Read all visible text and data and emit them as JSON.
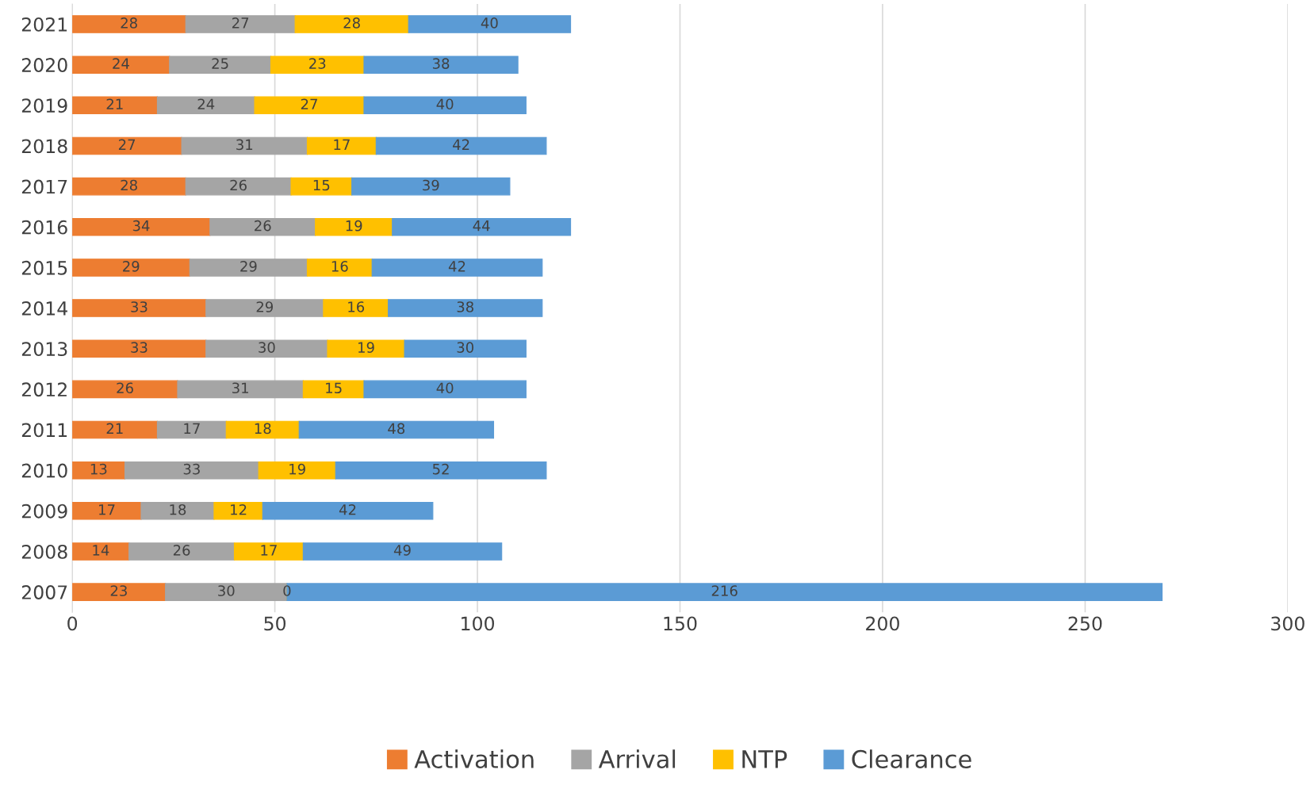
{
  "chart_data": {
    "type": "bar",
    "orientation": "horizontal",
    "stacked": true,
    "data_labels": true,
    "grid": "x",
    "legend": "bottom",
    "categories": [
      "2021",
      "2020",
      "2019",
      "2018",
      "2017",
      "2016",
      "2015",
      "2014",
      "2013",
      "2012",
      "2011",
      "2010",
      "2009",
      "2008",
      "2007"
    ],
    "xlim": [
      0,
      300
    ],
    "xticks": [
      0,
      50,
      100,
      150,
      200,
      250,
      300
    ],
    "series": [
      {
        "name": "Activation",
        "color": "#ed7d31",
        "values": [
          28,
          24,
          21,
          27,
          28,
          34,
          29,
          33,
          33,
          26,
          21,
          13,
          17,
          14,
          23
        ]
      },
      {
        "name": "Arrival",
        "color": "#a5a5a5",
        "values": [
          27,
          25,
          24,
          31,
          26,
          26,
          29,
          29,
          30,
          31,
          17,
          33,
          18,
          26,
          30
        ]
      },
      {
        "name": "NTP",
        "color": "#ffc000",
        "values": [
          28,
          23,
          27,
          17,
          15,
          19,
          16,
          16,
          19,
          15,
          18,
          19,
          12,
          17,
          0
        ]
      },
      {
        "name": "Clearance",
        "color": "#5b9bd5",
        "values": [
          40,
          38,
          40,
          42,
          39,
          44,
          42,
          38,
          30,
          40,
          48,
          52,
          42,
          49,
          216
        ]
      }
    ]
  }
}
